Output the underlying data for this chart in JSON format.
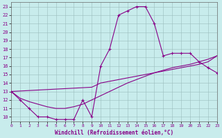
{
  "xlabel": "Windchill (Refroidissement éolien,°C)",
  "background_color": "#c8ecec",
  "line_color": "#880088",
  "xlim": [
    0,
    23
  ],
  "ylim": [
    9.5,
    23.5
  ],
  "xticks": [
    0,
    1,
    2,
    3,
    4,
    5,
    6,
    7,
    8,
    9,
    10,
    11,
    12,
    13,
    14,
    15,
    16,
    17,
    18,
    19,
    20,
    21,
    22,
    23
  ],
  "yticks": [
    10,
    11,
    12,
    13,
    14,
    15,
    16,
    17,
    18,
    19,
    20,
    21,
    22,
    23
  ],
  "curve_main_x": [
    0,
    1,
    2,
    3,
    4,
    5,
    6,
    7,
    8,
    9,
    10,
    11,
    12,
    13,
    14,
    15,
    16,
    17,
    18,
    19,
    20,
    21,
    22,
    23
  ],
  "curve_main_y": [
    13.0,
    12.0,
    11.0,
    10.0,
    10.0,
    9.7,
    9.7,
    9.7,
    12.0,
    10.0,
    16.0,
    18.0,
    22.0,
    22.5,
    23.0,
    23.0,
    21.0,
    17.2,
    17.5,
    17.5,
    17.5,
    16.5,
    15.8,
    15.2
  ],
  "curve_upper_x": [
    0,
    9,
    10,
    11,
    12,
    13,
    14,
    15,
    16,
    17,
    18,
    19,
    20,
    21,
    22,
    23
  ],
  "curve_upper_y": [
    13.0,
    13.5,
    14.0,
    14.2,
    14.4,
    14.6,
    14.8,
    15.0,
    15.2,
    15.4,
    15.6,
    15.8,
    16.0,
    16.2,
    16.5,
    17.2
  ],
  "curve_lower_x": [
    0,
    1,
    2,
    3,
    4,
    5,
    6,
    7,
    8,
    9,
    10,
    11,
    12,
    13,
    14,
    15,
    16,
    17,
    18,
    19,
    20,
    21,
    22,
    23
  ],
  "curve_lower_y": [
    13.0,
    12.2,
    11.8,
    11.5,
    11.2,
    11.0,
    11.0,
    11.2,
    11.5,
    12.0,
    12.5,
    13.0,
    13.5,
    14.0,
    14.4,
    14.8,
    15.2,
    15.5,
    15.8,
    16.0,
    16.2,
    16.5,
    16.8,
    17.2
  ]
}
